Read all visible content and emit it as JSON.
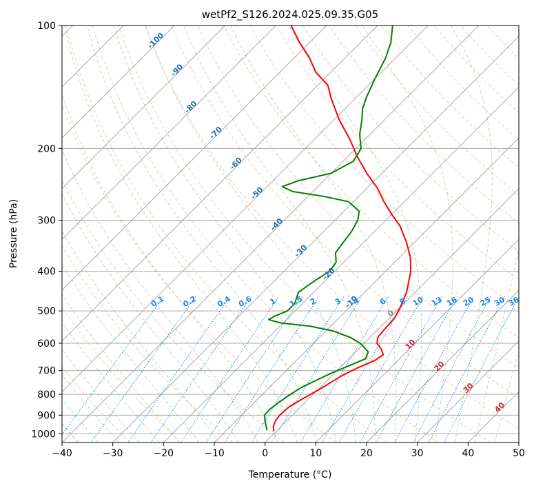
{
  "chart_data": {
    "type": "line",
    "subtype": "skew-t log-p",
    "title": "wetPf2_S126.2024.025.09.35.G05",
    "xlabel": "Temperature (°C)",
    "ylabel": "Pressure (hPa)",
    "xlim": [
      -40,
      50
    ],
    "ylim": [
      1050,
      100
    ],
    "yscale": "log",
    "grid": true,
    "x_ticks": [
      -40,
      -30,
      -20,
      -10,
      0,
      10,
      20,
      30,
      40,
      50
    ],
    "y_ticks": [
      1000,
      900,
      800,
      700,
      600,
      500,
      400,
      300,
      200,
      100
    ],
    "series": [
      {
        "color": "#ff0000",
        "points": [
          {
            "p": 985,
            "t": -0.5
          },
          {
            "p": 960,
            "t": -1.5
          },
          {
            "p": 930,
            "t": -2.2
          },
          {
            "p": 900,
            "t": -2.5
          },
          {
            "p": 860,
            "t": -2.3
          },
          {
            "p": 830,
            "t": -1.5
          },
          {
            "p": 800,
            "t": -0.5
          },
          {
            "p": 760,
            "t": 0.8
          },
          {
            "p": 720,
            "t": 2.0
          },
          {
            "p": 690,
            "t": 3.5
          },
          {
            "p": 660,
            "t": 5.5
          },
          {
            "p": 640,
            "t": 6.0
          },
          {
            "p": 620,
            "t": 4.5
          },
          {
            "p": 600,
            "t": 2.5
          },
          {
            "p": 580,
            "t": 1.5
          },
          {
            "p": 550,
            "t": 1.2
          },
          {
            "p": 520,
            "t": 1.0
          },
          {
            "p": 490,
            "t": 0.0
          },
          {
            "p": 450,
            "t": -1.7
          },
          {
            "p": 400,
            "t": -5.0
          },
          {
            "p": 370,
            "t": -7.8
          },
          {
            "p": 340,
            "t": -11.5
          },
          {
            "p": 310,
            "t": -16.0
          },
          {
            "p": 290,
            "t": -20.0
          },
          {
            "p": 270,
            "t": -24.0
          },
          {
            "p": 250,
            "t": -28.0
          },
          {
            "p": 230,
            "t": -33.0
          },
          {
            "p": 210,
            "t": -38.0
          },
          {
            "p": 190,
            "t": -43.0
          },
          {
            "p": 170,
            "t": -49.0
          },
          {
            "p": 150,
            "t": -55.0
          },
          {
            "p": 140,
            "t": -58.0
          },
          {
            "p": 130,
            "t": -63.0
          },
          {
            "p": 120,
            "t": -67.0
          },
          {
            "p": 110,
            "t": -72.0
          },
          {
            "p": 100,
            "t": -77.0
          }
        ]
      },
      {
        "color": "#008000",
        "points": [
          {
            "p": 980,
            "t": -2.0
          },
          {
            "p": 940,
            "t": -3.8
          },
          {
            "p": 900,
            "t": -5.5
          },
          {
            "p": 870,
            "t": -5.6
          },
          {
            "p": 840,
            "t": -5.2
          },
          {
            "p": 810,
            "t": -4.7
          },
          {
            "p": 770,
            "t": -3.7
          },
          {
            "p": 740,
            "t": -2.2
          },
          {
            "p": 710,
            "t": -0.6
          },
          {
            "p": 680,
            "t": 1.5
          },
          {
            "p": 655,
            "t": 3.3
          },
          {
            "p": 630,
            "t": 2.5
          },
          {
            "p": 600,
            "t": -0.8
          },
          {
            "p": 580,
            "t": -4.0
          },
          {
            "p": 560,
            "t": -8.5
          },
          {
            "p": 545,
            "t": -14.0
          },
          {
            "p": 535,
            "t": -20.5
          },
          {
            "p": 525,
            "t": -23.5
          },
          {
            "p": 515,
            "t": -23.0
          },
          {
            "p": 500,
            "t": -21.5
          },
          {
            "p": 480,
            "t": -21.5
          },
          {
            "p": 450,
            "t": -23.0
          },
          {
            "p": 420,
            "t": -22.0
          },
          {
            "p": 400,
            "t": -21.0
          },
          {
            "p": 380,
            "t": -21.5
          },
          {
            "p": 360,
            "t": -23.5
          },
          {
            "p": 340,
            "t": -24.0
          },
          {
            "p": 320,
            "t": -24.5
          },
          {
            "p": 300,
            "t": -25.5
          },
          {
            "p": 285,
            "t": -27.0
          },
          {
            "p": 270,
            "t": -31.0
          },
          {
            "p": 262,
            "t": -37.0
          },
          {
            "p": 255,
            "t": -44.0
          },
          {
            "p": 248,
            "t": -47.0
          },
          {
            "p": 240,
            "t": -45.0
          },
          {
            "p": 230,
            "t": -40.0
          },
          {
            "p": 215,
            "t": -38.0
          },
          {
            "p": 200,
            "t": -39.0
          },
          {
            "p": 185,
            "t": -42.0
          },
          {
            "p": 170,
            "t": -44.5
          },
          {
            "p": 160,
            "t": -46.5
          },
          {
            "p": 150,
            "t": -48.0
          },
          {
            "p": 135,
            "t": -50.0
          },
          {
            "p": 120,
            "t": -52.0
          },
          {
            "p": 110,
            "t": -54.0
          },
          {
            "p": 100,
            "t": -57.0
          }
        ]
      }
    ],
    "dry_adiabat_labels": [
      {
        "t": -100,
        "p": 110
      },
      {
        "t": -90,
        "p": 130
      },
      {
        "t": -80,
        "p": 160
      },
      {
        "t": -70,
        "p": 185
      },
      {
        "t": -60,
        "p": 220
      },
      {
        "t": -50,
        "p": 260
      },
      {
        "t": -40,
        "p": 310
      },
      {
        "t": -30,
        "p": 360
      },
      {
        "t": -20,
        "p": 410
      },
      {
        "t": -10,
        "p": 480
      }
    ],
    "moist_adiabat_labels": [
      {
        "t": 0,
        "p": 512
      },
      {
        "t": 10,
        "p": 610
      },
      {
        "t": 20,
        "p": 690
      },
      {
        "t": 30,
        "p": 780
      },
      {
        "t": 40,
        "p": 870
      }
    ],
    "mixing_ratio_labels": [
      "0.1",
      "0.2",
      "0.4",
      "0.6",
      "1",
      "1.5",
      "2",
      "3",
      "4",
      "6",
      "8",
      "10",
      "13",
      "16",
      "20",
      "25",
      "30",
      "36"
    ],
    "mixing_ratio_label_pressure": 480,
    "colors": {
      "temperature": "#ff0000",
      "dewpoint": "#008000",
      "isotherm_grid": "#aaaaaa",
      "dry_adiabat": "#f4a582",
      "moist_adiabat": "#4daf4a",
      "mixing_ratio": "#1e88e5",
      "dry_label": "#1f6fb2",
      "moist_label": "#d62728"
    }
  }
}
